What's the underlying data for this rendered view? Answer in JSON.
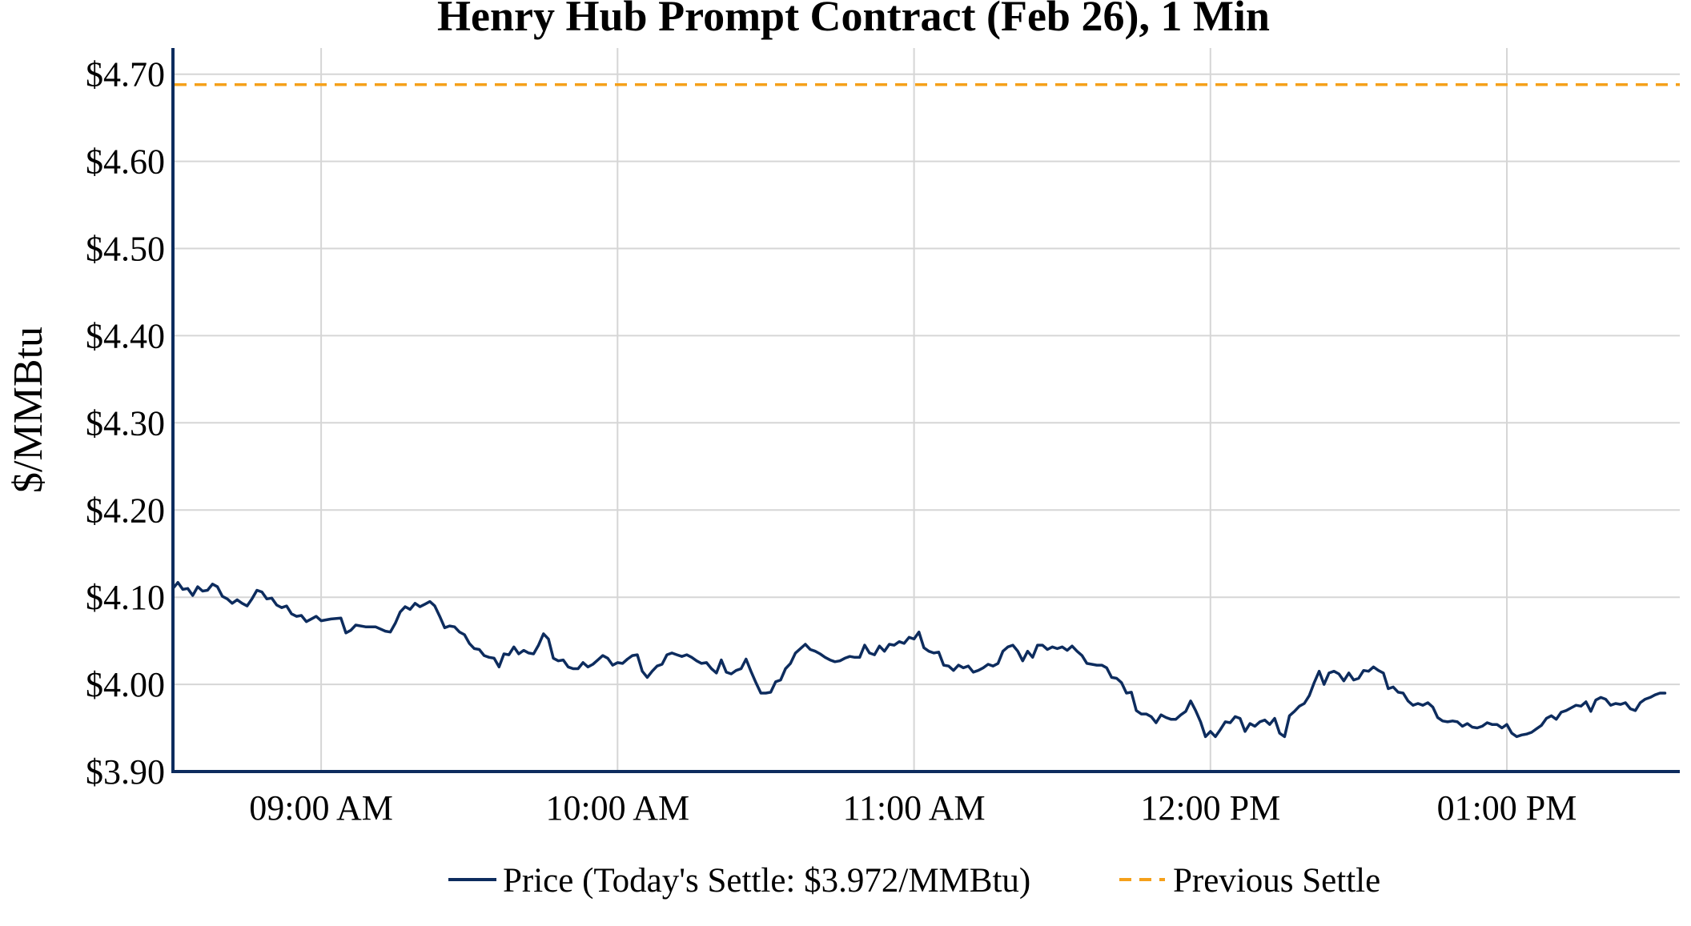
{
  "chart_data": {
    "type": "line",
    "title": "Henry Hub Prompt Contract (Feb 26), 1 Min",
    "xlabel": "",
    "ylabel": "$/MMBtu",
    "x_start": "08:30 AM",
    "x_end": "01:35 PM",
    "x_tick_labels": [
      "09:00 AM",
      "10:00 AM",
      "11:00 AM",
      "12:00 PM",
      "01:00 PM"
    ],
    "y_tick_labels": [
      "$3.90",
      "$4.00",
      "$4.10",
      "$4.20",
      "$4.30",
      "$4.40",
      "$4.50",
      "$4.60",
      "$4.70"
    ],
    "ylim": [
      3.9,
      4.73
    ],
    "grid": true,
    "legend_position": "bottom",
    "series": [
      {
        "name": "Price (Today's Settle: $3.972/MMBtu)",
        "style": "solid",
        "color": "#0d2c5e",
        "points": [
          [
            "08:30",
            4.11
          ],
          [
            "08:31",
            4.117
          ],
          [
            "08:32",
            4.109
          ],
          [
            "08:33",
            4.11
          ],
          [
            "08:34",
            4.102
          ],
          [
            "08:35",
            4.112
          ],
          [
            "08:36",
            4.107
          ],
          [
            "08:37",
            4.108
          ],
          [
            "08:38",
            4.115
          ],
          [
            "08:39",
            4.112
          ],
          [
            "08:40",
            4.101
          ],
          [
            "08:41",
            4.098
          ],
          [
            "08:42",
            4.093
          ],
          [
            "08:43",
            4.097
          ],
          [
            "08:44",
            4.093
          ],
          [
            "08:45",
            4.09
          ],
          [
            "08:46",
            4.098
          ],
          [
            "08:47",
            4.108
          ],
          [
            "08:48",
            4.106
          ],
          [
            "08:49",
            4.098
          ],
          [
            "08:50",
            4.099
          ],
          [
            "08:51",
            4.091
          ],
          [
            "08:52",
            4.088
          ],
          [
            "08:53",
            4.09
          ],
          [
            "08:54",
            4.081
          ],
          [
            "08:55",
            4.078
          ],
          [
            "08:56",
            4.079
          ],
          [
            "08:57",
            4.072
          ],
          [
            "08:58",
            4.075
          ],
          [
            "08:59",
            4.078
          ],
          [
            "09:00",
            4.073
          ],
          [
            "09:02",
            4.075
          ],
          [
            "09:04",
            4.076
          ],
          [
            "09:05",
            4.059
          ],
          [
            "09:06",
            4.062
          ],
          [
            "09:07",
            4.068
          ],
          [
            "09:09",
            4.066
          ],
          [
            "09:11",
            4.066
          ],
          [
            "09:13",
            4.061
          ],
          [
            "09:14",
            4.06
          ],
          [
            "09:15",
            4.07
          ],
          [
            "09:16",
            4.083
          ],
          [
            "09:17",
            4.089
          ],
          [
            "09:18",
            4.086
          ],
          [
            "09:19",
            4.093
          ],
          [
            "09:20",
            4.089
          ],
          [
            "09:21",
            4.092
          ],
          [
            "09:22",
            4.095
          ],
          [
            "09:23",
            4.09
          ],
          [
            "09:24",
            4.078
          ],
          [
            "09:25",
            4.065
          ],
          [
            "09:26",
            4.067
          ],
          [
            "09:27",
            4.066
          ],
          [
            "09:28",
            4.06
          ],
          [
            "09:29",
            4.057
          ],
          [
            "09:30",
            4.047
          ],
          [
            "09:31",
            4.041
          ],
          [
            "09:32",
            4.04
          ],
          [
            "09:33",
            4.033
          ],
          [
            "09:34",
            4.031
          ],
          [
            "09:35",
            4.03
          ],
          [
            "09:36",
            4.02
          ],
          [
            "09:37",
            4.035
          ],
          [
            "09:38",
            4.034
          ],
          [
            "09:39",
            4.043
          ],
          [
            "09:40",
            4.035
          ],
          [
            "09:41",
            4.039
          ],
          [
            "09:42",
            4.036
          ],
          [
            "09:43",
            4.035
          ],
          [
            "09:44",
            4.045
          ],
          [
            "09:45",
            4.058
          ],
          [
            "09:46",
            4.052
          ],
          [
            "09:47",
            4.03
          ],
          [
            "09:48",
            4.027
          ],
          [
            "09:49",
            4.028
          ],
          [
            "09:50",
            4.02
          ],
          [
            "09:51",
            4.018
          ],
          [
            "09:52",
            4.018
          ],
          [
            "09:53",
            4.025
          ],
          [
            "09:54",
            4.02
          ],
          [
            "09:55",
            4.023
          ],
          [
            "09:56",
            4.028
          ],
          [
            "09:57",
            4.033
          ],
          [
            "09:58",
            4.03
          ],
          [
            "09:59",
            4.022
          ],
          [
            "10:00",
            4.025
          ],
          [
            "10:01",
            4.024
          ],
          [
            "10:02",
            4.029
          ],
          [
            "10:03",
            4.033
          ],
          [
            "10:04",
            4.034
          ],
          [
            "10:05",
            4.015
          ],
          [
            "10:06",
            4.008
          ],
          [
            "10:07",
            4.015
          ],
          [
            "10:08",
            4.021
          ],
          [
            "10:09",
            4.023
          ],
          [
            "10:10",
            4.034
          ],
          [
            "10:11",
            4.036
          ],
          [
            "10:12",
            4.034
          ],
          [
            "10:13",
            4.032
          ],
          [
            "10:14",
            4.034
          ],
          [
            "10:15",
            4.031
          ],
          [
            "10:16",
            4.027
          ],
          [
            "10:17",
            4.024
          ],
          [
            "10:18",
            4.025
          ],
          [
            "10:19",
            4.018
          ],
          [
            "10:20",
            4.013
          ],
          [
            "10:21",
            4.028
          ],
          [
            "10:22",
            4.014
          ],
          [
            "10:23",
            4.012
          ],
          [
            "10:24",
            4.016
          ],
          [
            "10:25",
            4.018
          ],
          [
            "10:26",
            4.029
          ],
          [
            "10:27",
            4.015
          ],
          [
            "10:28",
            4.002
          ],
          [
            "10:29",
            3.99
          ],
          [
            "10:30",
            3.99
          ],
          [
            "10:31",
            3.991
          ],
          [
            "10:32",
            4.003
          ],
          [
            "10:33",
            4.005
          ],
          [
            "10:34",
            4.018
          ],
          [
            "10:35",
            4.024
          ],
          [
            "10:36",
            4.036
          ],
          [
            "10:37",
            4.041
          ],
          [
            "10:38",
            4.046
          ],
          [
            "10:39",
            4.04
          ],
          [
            "10:40",
            4.038
          ],
          [
            "10:41",
            4.035
          ],
          [
            "10:42",
            4.031
          ],
          [
            "10:43",
            4.028
          ],
          [
            "10:44",
            4.026
          ],
          [
            "10:45",
            4.027
          ],
          [
            "10:46",
            4.03
          ],
          [
            "10:47",
            4.032
          ],
          [
            "10:48",
            4.031
          ],
          [
            "10:49",
            4.031
          ],
          [
            "10:50",
            4.045
          ],
          [
            "10:51",
            4.036
          ],
          [
            "10:52",
            4.034
          ],
          [
            "10:53",
            4.044
          ],
          [
            "10:54",
            4.038
          ],
          [
            "10:55",
            4.046
          ],
          [
            "10:56",
            4.045
          ],
          [
            "10:57",
            4.049
          ],
          [
            "10:58",
            4.047
          ],
          [
            "10:59",
            4.054
          ],
          [
            "11:00",
            4.052
          ],
          [
            "11:01",
            4.06
          ],
          [
            "11:02",
            4.042
          ],
          [
            "11:03",
            4.038
          ],
          [
            "11:04",
            4.036
          ],
          [
            "11:05",
            4.037
          ],
          [
            "11:06",
            4.022
          ],
          [
            "11:07",
            4.021
          ],
          [
            "11:08",
            4.016
          ],
          [
            "11:09",
            4.022
          ],
          [
            "11:10",
            4.019
          ],
          [
            "11:11",
            4.021
          ],
          [
            "11:12",
            4.014
          ],
          [
            "11:13",
            4.016
          ],
          [
            "11:14",
            4.019
          ],
          [
            "11:15",
            4.023
          ],
          [
            "11:16",
            4.021
          ],
          [
            "11:17",
            4.024
          ],
          [
            "11:18",
            4.038
          ],
          [
            "11:19",
            4.043
          ],
          [
            "11:20",
            4.045
          ],
          [
            "11:21",
            4.038
          ],
          [
            "11:22",
            4.027
          ],
          [
            "11:23",
            4.038
          ],
          [
            "11:24",
            4.031
          ],
          [
            "11:25",
            4.045
          ],
          [
            "11:26",
            4.045
          ],
          [
            "11:27",
            4.04
          ],
          [
            "11:28",
            4.043
          ],
          [
            "11:29",
            4.041
          ],
          [
            "11:30",
            4.043
          ],
          [
            "11:31",
            4.039
          ],
          [
            "11:32",
            4.044
          ],
          [
            "11:33",
            4.038
          ],
          [
            "11:34",
            4.033
          ],
          [
            "11:35",
            4.024
          ],
          [
            "11:36",
            4.023
          ],
          [
            "11:37",
            4.022
          ],
          [
            "11:38",
            4.022
          ],
          [
            "11:39",
            4.019
          ],
          [
            "11:40",
            4.008
          ],
          [
            "11:41",
            4.007
          ],
          [
            "11:42",
            4.002
          ],
          [
            "11:43",
            3.99
          ],
          [
            "11:44",
            3.991
          ],
          [
            "11:45",
            3.97
          ],
          [
            "11:46",
            3.966
          ],
          [
            "11:47",
            3.966
          ],
          [
            "11:48",
            3.963
          ],
          [
            "11:49",
            3.956
          ],
          [
            "11:50",
            3.965
          ],
          [
            "11:51",
            3.962
          ],
          [
            "11:52",
            3.96
          ],
          [
            "11:53",
            3.96
          ],
          [
            "11:54",
            3.965
          ],
          [
            "11:55",
            3.969
          ],
          [
            "11:56",
            3.981
          ],
          [
            "11:57",
            3.97
          ],
          [
            "11:58",
            3.957
          ],
          [
            "11:59",
            3.94
          ],
          [
            "12:00",
            3.946
          ],
          [
            "12:01",
            3.94
          ],
          [
            "12:02",
            3.948
          ],
          [
            "12:03",
            3.957
          ],
          [
            "12:04",
            3.956
          ],
          [
            "12:05",
            3.963
          ],
          [
            "12:06",
            3.961
          ],
          [
            "12:07",
            3.946
          ],
          [
            "12:08",
            3.955
          ],
          [
            "12:09",
            3.952
          ],
          [
            "12:10",
            3.957
          ],
          [
            "12:11",
            3.959
          ],
          [
            "12:12",
            3.954
          ],
          [
            "12:13",
            3.961
          ],
          [
            "12:14",
            3.944
          ],
          [
            "12:15",
            3.94
          ],
          [
            "12:16",
            3.964
          ],
          [
            "12:17",
            3.969
          ],
          [
            "12:18",
            3.975
          ],
          [
            "12:19",
            3.978
          ],
          [
            "12:20",
            3.987
          ],
          [
            "12:21",
            4.002
          ],
          [
            "12:22",
            4.015
          ],
          [
            "12:23",
            4.0
          ],
          [
            "12:24",
            4.013
          ],
          [
            "12:25",
            4.015
          ],
          [
            "12:26",
            4.012
          ],
          [
            "12:27",
            4.004
          ],
          [
            "12:28",
            4.013
          ],
          [
            "12:29",
            4.005
          ],
          [
            "12:30",
            4.007
          ],
          [
            "12:31",
            4.016
          ],
          [
            "12:32",
            4.015
          ],
          [
            "12:33",
            4.02
          ],
          [
            "12:34",
            4.016
          ],
          [
            "12:35",
            4.013
          ],
          [
            "12:36",
            3.995
          ],
          [
            "12:37",
            3.997
          ],
          [
            "12:38",
            3.991
          ],
          [
            "12:39",
            3.99
          ],
          [
            "12:40",
            3.981
          ],
          [
            "12:41",
            3.976
          ],
          [
            "12:42",
            3.978
          ],
          [
            "12:43",
            3.976
          ],
          [
            "12:44",
            3.979
          ],
          [
            "12:45",
            3.974
          ],
          [
            "12:46",
            3.962
          ],
          [
            "12:47",
            3.958
          ],
          [
            "12:48",
            3.957
          ],
          [
            "12:49",
            3.958
          ],
          [
            "12:50",
            3.957
          ],
          [
            "12:51",
            3.952
          ],
          [
            "12:52",
            3.955
          ],
          [
            "12:53",
            3.951
          ],
          [
            "12:54",
            3.95
          ],
          [
            "12:55",
            3.952
          ],
          [
            "12:56",
            3.956
          ],
          [
            "12:57",
            3.954
          ],
          [
            "12:58",
            3.954
          ],
          [
            "12:59",
            3.95
          ],
          [
            "13:00",
            3.954
          ],
          [
            "13:01",
            3.944
          ],
          [
            "13:02",
            3.94
          ],
          [
            "13:03",
            3.942
          ],
          [
            "13:04",
            3.943
          ],
          [
            "13:05",
            3.945
          ],
          [
            "13:06",
            3.949
          ],
          [
            "13:07",
            3.953
          ],
          [
            "13:08",
            3.961
          ],
          [
            "13:09",
            3.964
          ],
          [
            "13:10",
            3.96
          ],
          [
            "13:11",
            3.968
          ],
          [
            "13:12",
            3.97
          ],
          [
            "13:13",
            3.973
          ],
          [
            "13:14",
            3.976
          ],
          [
            "13:15",
            3.975
          ],
          [
            "13:16",
            3.98
          ],
          [
            "13:17",
            3.969
          ],
          [
            "13:18",
            3.982
          ],
          [
            "13:19",
            3.985
          ],
          [
            "13:20",
            3.983
          ],
          [
            "13:21",
            3.976
          ],
          [
            "13:22",
            3.978
          ],
          [
            "13:23",
            3.977
          ],
          [
            "13:24",
            3.979
          ],
          [
            "13:25",
            3.972
          ],
          [
            "13:26",
            3.97
          ],
          [
            "13:27",
            3.979
          ],
          [
            "13:28",
            3.983
          ],
          [
            "13:29",
            3.985
          ],
          [
            "13:30",
            3.988
          ],
          [
            "13:31",
            3.99
          ],
          [
            "13:32",
            3.99
          ]
        ]
      },
      {
        "name": "Previous Settle",
        "style": "dashed",
        "color": "#f5a01a",
        "value": 4.688
      }
    ]
  }
}
